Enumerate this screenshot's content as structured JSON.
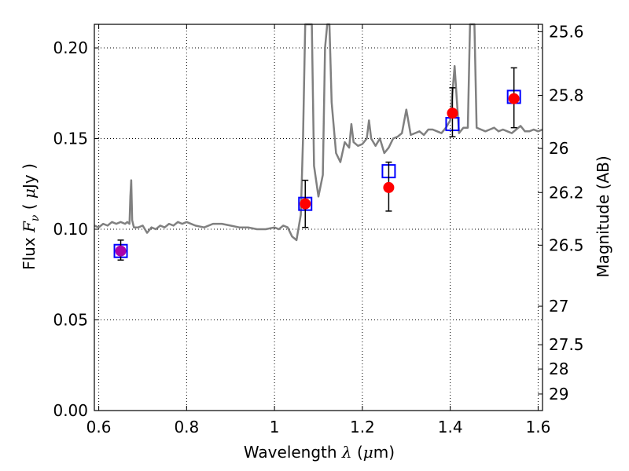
{
  "chart_data": {
    "type": "scatter",
    "title": "",
    "xlabel": "Wavelength  λ (μm)",
    "ylabel": "Flux  F_ν  ( μJy )",
    "ylabel_right": "Magnitude (AB)",
    "xlim": [
      0.59,
      1.61
    ],
    "ylim": [
      0.0,
      0.213
    ],
    "grid": true,
    "x_ticks": [
      0.6,
      0.8,
      1.0,
      1.2,
      1.4,
      1.6
    ],
    "x_tick_labels": [
      "0.6",
      "0.8",
      "1",
      "1.2",
      "1.4",
      "1.6"
    ],
    "y_ticks": [
      0.0,
      0.05,
      0.1,
      0.15,
      0.2
    ],
    "y_tick_labels": [
      "0.00",
      "0.05",
      "0.10",
      "0.15",
      "0.20"
    ],
    "right_ticks": [
      {
        "label": "25.6",
        "mag": 25.6
      },
      {
        "label": "25.8",
        "mag": 25.8
      },
      {
        "label": "26",
        "mag": 26.0
      },
      {
        "label": "26.2",
        "mag": 26.2
      },
      {
        "label": "26.5",
        "mag": 26.5
      },
      {
        "label": "27",
        "mag": 27.0
      },
      {
        "label": "27.5",
        "mag": 27.5
      },
      {
        "label": "28",
        "mag": 28.0
      },
      {
        "label": "29",
        "mag": 29.0
      }
    ],
    "colors": {
      "spectrum": "#808080",
      "model_box": "#0000ff",
      "observed": "#ff0000",
      "first_point": "#aa00aa",
      "errorbar": "#000000",
      "grid": "#000000"
    },
    "spectrum": {
      "x": [
        0.59,
        0.6,
        0.61,
        0.62,
        0.63,
        0.64,
        0.65,
        0.66,
        0.665,
        0.67,
        0.672,
        0.674,
        0.676,
        0.68,
        0.69,
        0.7,
        0.71,
        0.72,
        0.73,
        0.74,
        0.75,
        0.76,
        0.77,
        0.78,
        0.79,
        0.8,
        0.82,
        0.84,
        0.86,
        0.88,
        0.9,
        0.92,
        0.94,
        0.96,
        0.98,
        1.0,
        1.01,
        1.02,
        1.03,
        1.04,
        1.05,
        1.06,
        1.065,
        1.07,
        1.08,
        1.085,
        1.09,
        1.1,
        1.11,
        1.115,
        1.12,
        1.125,
        1.13,
        1.14,
        1.15,
        1.16,
        1.17,
        1.175,
        1.18,
        1.19,
        1.2,
        1.21,
        1.215,
        1.22,
        1.23,
        1.24,
        1.25,
        1.26,
        1.27,
        1.28,
        1.29,
        1.3,
        1.31,
        1.32,
        1.33,
        1.34,
        1.35,
        1.36,
        1.37,
        1.38,
        1.39,
        1.4,
        1.405,
        1.41,
        1.42,
        1.43,
        1.44,
        1.445,
        1.45,
        1.455,
        1.46,
        1.47,
        1.48,
        1.49,
        1.5,
        1.51,
        1.52,
        1.53,
        1.54,
        1.55,
        1.56,
        1.57,
        1.58,
        1.59,
        1.6,
        1.61
      ],
      "y": [
        0.102,
        0.101,
        0.103,
        0.102,
        0.104,
        0.103,
        0.104,
        0.103,
        0.104,
        0.103,
        0.118,
        0.127,
        0.105,
        0.101,
        0.101,
        0.102,
        0.098,
        0.101,
        0.1,
        0.102,
        0.101,
        0.103,
        0.102,
        0.104,
        0.103,
        0.104,
        0.102,
        0.101,
        0.103,
        0.103,
        0.102,
        0.101,
        0.101,
        0.1,
        0.1,
        0.101,
        0.1,
        0.102,
        0.101,
        0.096,
        0.094,
        0.108,
        0.15,
        0.213,
        0.213,
        0.213,
        0.135,
        0.118,
        0.13,
        0.2,
        0.213,
        0.213,
        0.17,
        0.142,
        0.137,
        0.148,
        0.145,
        0.158,
        0.148,
        0.146,
        0.147,
        0.15,
        0.16,
        0.15,
        0.146,
        0.15,
        0.142,
        0.145,
        0.15,
        0.151,
        0.153,
        0.166,
        0.152,
        0.153,
        0.154,
        0.152,
        0.155,
        0.155,
        0.154,
        0.153,
        0.156,
        0.16,
        0.175,
        0.19,
        0.153,
        0.156,
        0.156,
        0.213,
        0.213,
        0.213,
        0.156,
        0.155,
        0.154,
        0.155,
        0.156,
        0.154,
        0.155,
        0.154,
        0.153,
        0.155,
        0.157,
        0.154,
        0.154,
        0.155,
        0.154,
        0.155
      ]
    },
    "series": [
      {
        "type": "model_box",
        "x": [
          0.65,
          1.07,
          1.26,
          1.405,
          1.545
        ],
        "y": [
          0.088,
          0.114,
          0.132,
          0.158,
          0.173
        ]
      },
      {
        "type": "observed",
        "x": [
          0.65,
          1.07,
          1.26,
          1.405,
          1.545
        ],
        "y": [
          0.088,
          0.114,
          0.123,
          0.164,
          0.172
        ],
        "yerr_low": [
          0.083,
          0.101,
          0.11,
          0.151,
          0.156
        ],
        "yerr_high": [
          0.094,
          0.127,
          0.137,
          0.178,
          0.189
        ]
      }
    ]
  }
}
